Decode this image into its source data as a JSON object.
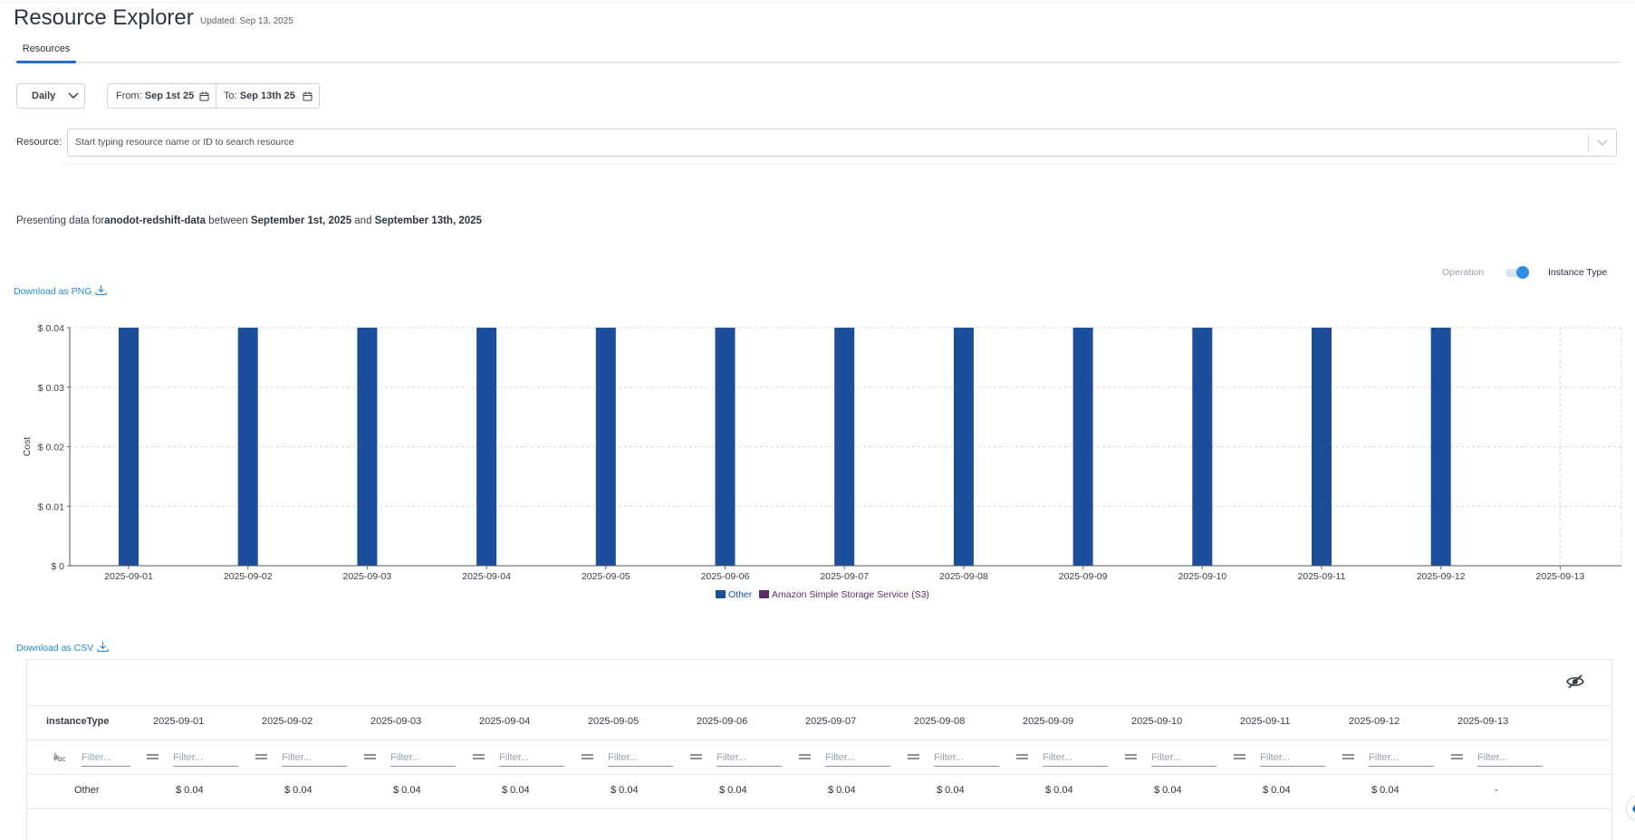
{
  "header": {
    "title": "Resource Explorer",
    "updated": "Updated: Sep 13, 2025"
  },
  "tabs": [
    {
      "label": "Resources",
      "active": true
    }
  ],
  "controls": {
    "period": "Daily",
    "from_label": "From:",
    "from_value": "Sep 1st 25",
    "to_label": "To:",
    "to_value": "Sep 13th 25"
  },
  "resource": {
    "label": "Resource:",
    "placeholder": "Start typing resource name or ID to search resource"
  },
  "presenting": {
    "prefix": "Presenting data for",
    "resource_name": "anodot-redshift-data",
    "between": " between ",
    "start": "September 1st, 2025",
    "and": " and ",
    "end": "September 13th, 2025"
  },
  "toggle": {
    "left_label": "Operation",
    "right_label": "Instance Type",
    "state": "Instance Type"
  },
  "download_png": "Download as PNG",
  "download_csv": "Download as CSV",
  "icons": {
    "chevron": "chevron-down-icon",
    "calendar": "calendar-icon",
    "download": "download-icon",
    "hide_columns": "eye-off-icon",
    "filter_text": "text-filter-icon",
    "filter_equals": "equals-filter-icon"
  },
  "colors": {
    "accent": "#1c6fd1",
    "link": "#1f8bd8",
    "series_other": "#1b4f9c",
    "series_s3": "#5a2c6a",
    "toggle_knob": "#2e8ce6"
  },
  "chart_data": {
    "type": "bar",
    "ylabel": "Cost",
    "ylim": [
      0,
      0.04
    ],
    "yticks": [
      "$ 0",
      "$ 0.01",
      "$ 0.02",
      "$ 0.03",
      "$ 0.04"
    ],
    "ytick_values": [
      0,
      0.01,
      0.02,
      0.03,
      0.04
    ],
    "categories": [
      "2025-09-01",
      "2025-09-02",
      "2025-09-03",
      "2025-09-04",
      "2025-09-05",
      "2025-09-06",
      "2025-09-07",
      "2025-09-08",
      "2025-09-09",
      "2025-09-10",
      "2025-09-11",
      "2025-09-12",
      "2025-09-13"
    ],
    "series": [
      {
        "name": "Other",
        "values": [
          0.04,
          0.04,
          0.04,
          0.04,
          0.04,
          0.04,
          0.04,
          0.04,
          0.04,
          0.04,
          0.04,
          0.04,
          0
        ]
      },
      {
        "name": "Amazon Simple Storage Service (S3)",
        "values": [
          0,
          0,
          0,
          0,
          0,
          0,
          0,
          0,
          0,
          0,
          0,
          0,
          0
        ]
      }
    ],
    "grid": true,
    "legend": "bottom-center"
  },
  "table": {
    "columns": [
      "instanceType",
      "2025-09-01",
      "2025-09-02",
      "2025-09-03",
      "2025-09-04",
      "2025-09-05",
      "2025-09-06",
      "2025-09-07",
      "2025-09-08",
      "2025-09-09",
      "2025-09-10",
      "2025-09-11",
      "2025-09-12",
      "2025-09-13"
    ],
    "filter_placeholder": "Filter...",
    "rows": [
      [
        "Other",
        "$ 0.04",
        "$ 0.04",
        "$ 0.04",
        "$ 0.04",
        "$ 0.04",
        "$ 0.04",
        "$ 0.04",
        "$ 0.04",
        "$ 0.04",
        "$ 0.04",
        "$ 0.04",
        "$ 0.04",
        "-"
      ]
    ]
  }
}
